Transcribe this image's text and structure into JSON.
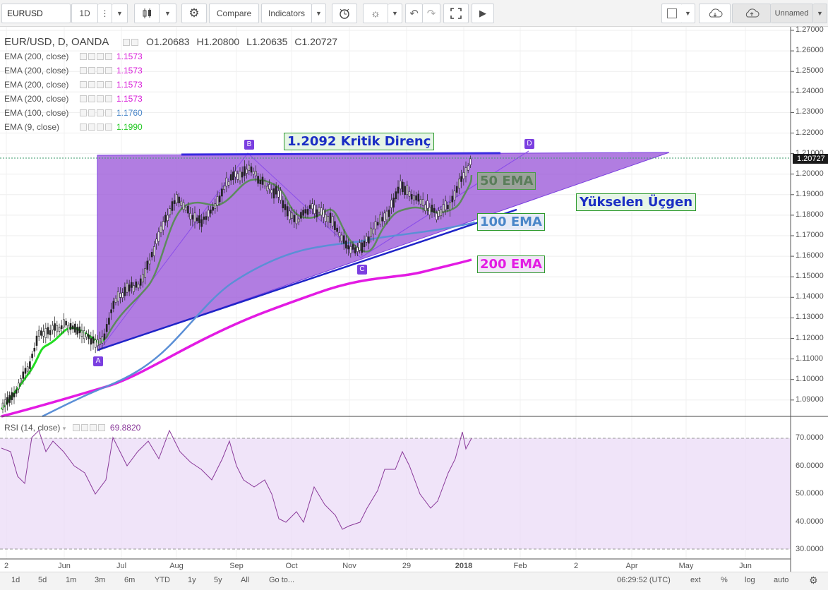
{
  "toolbar": {
    "symbol": "EURUSD",
    "interval": "1D",
    "compare_label": "Compare",
    "indicators_label": "Indicators",
    "layout_name": "Unnamed"
  },
  "chart": {
    "title": "EUR/USD, D, OANDA",
    "ohlc": {
      "o_label": "O",
      "o": "1.20683",
      "h_label": "H",
      "h": "1.20800",
      "l_label": "L",
      "l": "1.20635",
      "c_label": "C",
      "c": "1.20727"
    },
    "indicators": [
      {
        "name": "EMA (200, close)",
        "value": "1.1573",
        "color": "#d81bd8"
      },
      {
        "name": "EMA (200, close)",
        "value": "1.1573",
        "color": "#d81bd8"
      },
      {
        "name": "EMA (200, close)",
        "value": "1.1573",
        "color": "#d81bd8"
      },
      {
        "name": "EMA (200, close)",
        "value": "1.1573",
        "color": "#d81bd8"
      },
      {
        "name": "EMA (100, close)",
        "value": "1.1760",
        "color": "#4a86c8"
      },
      {
        "name": "EMA (9, close)",
        "value": "1.1990",
        "color": "#22c922"
      }
    ],
    "price_axis": [
      "1.27000",
      "1.26000",
      "1.25000",
      "1.24000",
      "1.23000",
      "1.22000",
      "1.21000",
      "1.20000",
      "1.19000",
      "1.18000",
      "1.17000",
      "1.16000",
      "1.15000",
      "1.14000",
      "1.13000",
      "1.12000",
      "1.11000",
      "1.10000",
      "1.09000"
    ],
    "last_price": "1.20727",
    "annotations": {
      "resistance": "1.2092 Kritik Direnç",
      "ema50": "50 EMA",
      "ema100": "100 EMA",
      "ema200": "200 EMA",
      "triangle": "Yükselen Üçgen",
      "points": [
        "A",
        "B",
        "C",
        "D"
      ]
    },
    "colors": {
      "triangle_fill": "#9b59d9",
      "line_blue": "#2a2ad0",
      "ema200": "#e31be3",
      "ema100": "#5b8fd6",
      "ema50": "#5d8a5d",
      "ema9": "#22dd22",
      "rsi": "#8a3a9a"
    }
  },
  "rsi": {
    "title": "RSI (14, close)",
    "value": "69.8820",
    "axis": [
      "70.0000",
      "60.0000",
      "50.0000",
      "40.0000",
      "30.0000"
    ]
  },
  "time_axis": [
    "2",
    "Jun",
    "Jul",
    "Aug",
    "Sep",
    "Oct",
    "Nov",
    "29",
    "2018",
    "Feb",
    "2",
    "Apr",
    "May",
    "Jun"
  ],
  "bottom": {
    "ranges": [
      "1d",
      "5d",
      "1m",
      "3m",
      "6m",
      "YTD",
      "1y",
      "5y",
      "All"
    ],
    "goto": "Go to...",
    "clock": "06:29:52 (UTC)",
    "options": [
      "ext",
      "%",
      "log",
      "auto"
    ]
  }
}
